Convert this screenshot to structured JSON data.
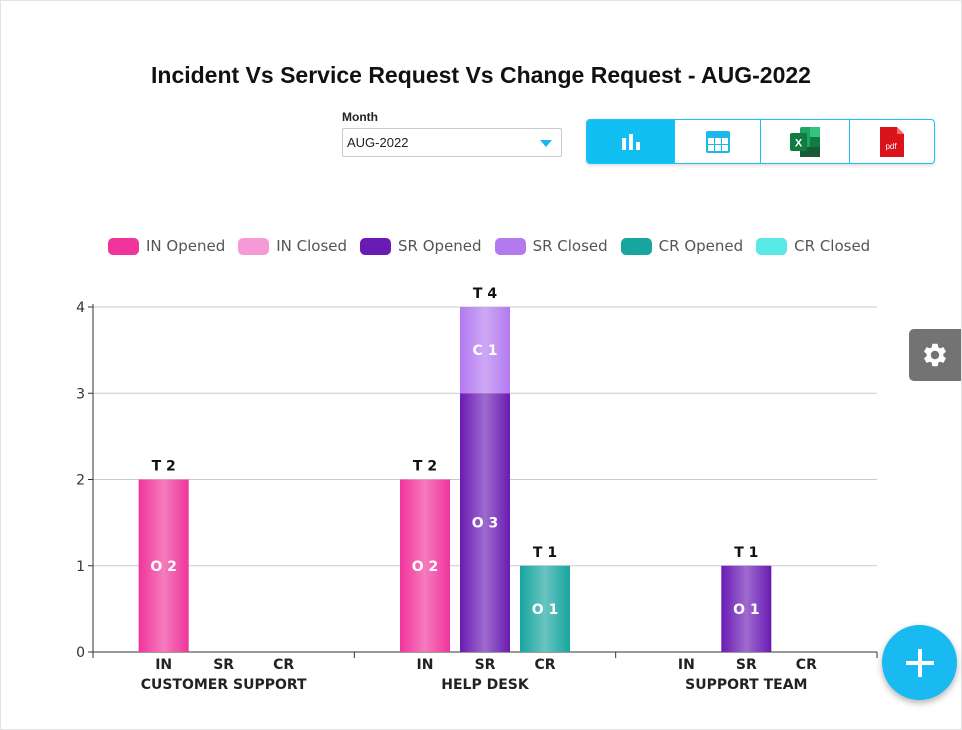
{
  "title": "Incident Vs Service Request Vs Change Request - AUG-2022",
  "month": {
    "label": "Month",
    "value": "AUG-2022"
  },
  "view_buttons": [
    {
      "icon": "bar-chart-icon",
      "active": true
    },
    {
      "icon": "table-icon",
      "active": false
    },
    {
      "icon": "excel-icon",
      "active": false
    },
    {
      "icon": "pdf-icon",
      "active": false,
      "text": "pdf"
    }
  ],
  "colors": {
    "in_opened": "#f0349b",
    "in_closed": "#f59ad6",
    "sr_opened": "#6a1bb3",
    "sr_closed": "#b37af0",
    "cr_opened": "#18a59f",
    "cr_closed": "#58e8e5",
    "accent": "#11bff3",
    "gear_bg": "#737373",
    "excel": "#1e7145",
    "pdf": "#d9151b"
  },
  "chart_data": {
    "type": "bar",
    "stacked": true,
    "groups": [
      "CUSTOMER SUPPORT",
      "HELP DESK",
      "SUPPORT TEAM"
    ],
    "subcategories": [
      "IN",
      "SR",
      "CR"
    ],
    "series": [
      {
        "name": "IN Opened",
        "type": "IN",
        "status": "Opened",
        "values": [
          2,
          2,
          0
        ]
      },
      {
        "name": "IN Closed",
        "type": "IN",
        "status": "Closed",
        "values": [
          0,
          0,
          0
        ]
      },
      {
        "name": "SR Opened",
        "type": "SR",
        "status": "Opened",
        "values": [
          0,
          3,
          1
        ]
      },
      {
        "name": "SR Closed",
        "type": "SR",
        "status": "Closed",
        "values": [
          0,
          1,
          0
        ]
      },
      {
        "name": "CR Opened",
        "type": "CR",
        "status": "Opened",
        "values": [
          0,
          1,
          0
        ]
      },
      {
        "name": "CR Closed",
        "type": "CR",
        "status": "Closed",
        "values": [
          0,
          0,
          0
        ]
      }
    ],
    "label_prefixes": {
      "Opened": "O",
      "Closed": "C",
      "Total": "T"
    },
    "ylim": [
      0,
      4
    ],
    "yticks": [
      0,
      1,
      2,
      3,
      4
    ],
    "grid": true,
    "legend_position": "top"
  }
}
